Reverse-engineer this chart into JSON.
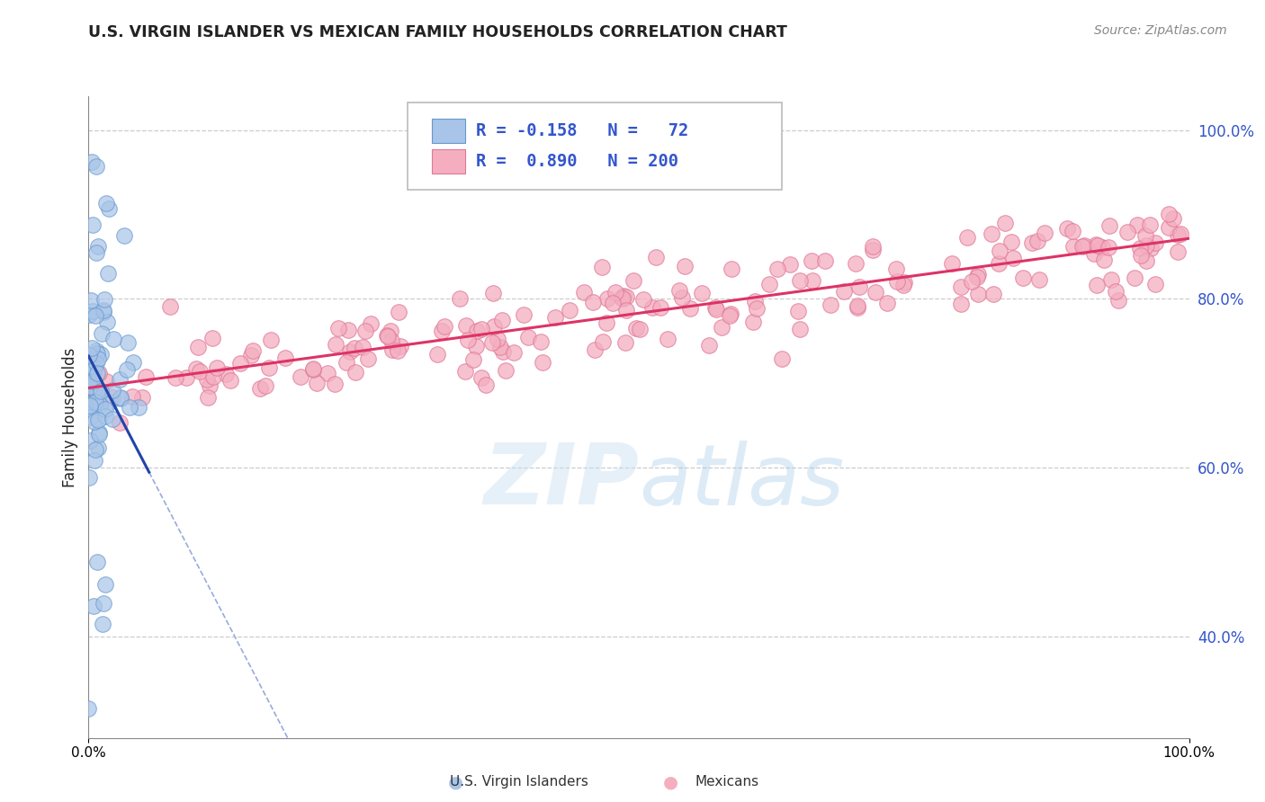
{
  "title": "U.S. VIRGIN ISLANDER VS MEXICAN FAMILY HOUSEHOLDS CORRELATION CHART",
  "source": "Source: ZipAtlas.com",
  "ylabel": "Family Households",
  "xlim": [
    0.0,
    1.0
  ],
  "ylim": [
    0.28,
    1.04
  ],
  "yticks": [
    0.4,
    0.6,
    0.8,
    1.0
  ],
  "ytick_labels": [
    "40.0%",
    "60.0%",
    "80.0%",
    "100.0%"
  ],
  "blue_color": "#a8c4e8",
  "blue_edge": "#6699cc",
  "blue_line_solid_color": "#2244aa",
  "blue_line_dash_color": "#99aadd",
  "pink_color": "#f4aec0",
  "pink_edge": "#e07898",
  "pink_line_color": "#dd3366",
  "watermark_zip": "ZIP",
  "watermark_atlas": "atlas",
  "background": "#ffffff",
  "grid_color": "#cccccc",
  "blue_R": -0.158,
  "blue_N": 72,
  "pink_R": 0.89,
  "pink_N": 200,
  "legend_blue_r": "R = -0.158",
  "legend_blue_n": "N =  72",
  "legend_pink_r": "R = 0.890",
  "legend_pink_n": "N = 200",
  "bottom_label_blue": "U.S. Virgin Islanders",
  "bottom_label_pink": "Mexicans"
}
